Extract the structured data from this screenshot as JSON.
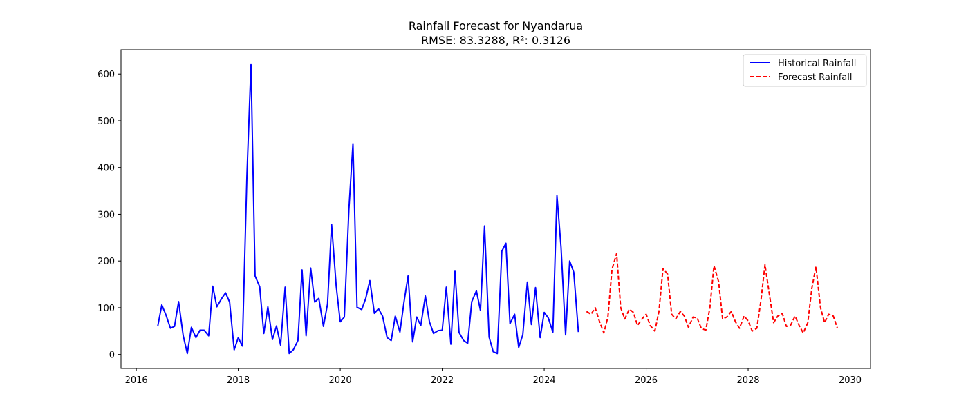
{
  "chart_data": {
    "type": "line",
    "title": "Rainfall Forecast for Nyandarua",
    "subtitle": "RMSE: 83.3288, R²: 0.3126",
    "xlabel": "",
    "ylabel": "",
    "xlim": [
      2015.7,
      2030.4
    ],
    "ylim": [
      -30,
      652
    ],
    "xticks": [
      2016,
      2018,
      2020,
      2022,
      2024,
      2026,
      2028,
      2030
    ],
    "yticks": [
      0,
      100,
      200,
      300,
      400,
      500,
      600
    ],
    "grid": false,
    "legend_position": "top-right",
    "series": [
      {
        "name": "Historical Rainfall",
        "color": "#0000ff",
        "style": "solid",
        "x": [
          2016.42,
          2016.5,
          2016.58,
          2016.67,
          2016.75,
          2016.83,
          2016.92,
          2017.0,
          2017.08,
          2017.17,
          2017.25,
          2017.33,
          2017.42,
          2017.5,
          2017.58,
          2017.67,
          2017.75,
          2017.83,
          2017.92,
          2018.0,
          2018.08,
          2018.17,
          2018.25,
          2018.33,
          2018.42,
          2018.5,
          2018.58,
          2018.67,
          2018.75,
          2018.83,
          2018.92,
          2019.0,
          2019.08,
          2019.17,
          2019.25,
          2019.33,
          2019.42,
          2019.5,
          2019.58,
          2019.67,
          2019.75,
          2019.83,
          2019.92,
          2020.0,
          2020.08,
          2020.17,
          2020.25,
          2020.33,
          2020.42,
          2020.5,
          2020.58,
          2020.67,
          2020.75,
          2020.83,
          2020.92,
          2021.0,
          2021.08,
          2021.17,
          2021.25,
          2021.33,
          2021.42,
          2021.5,
          2021.58,
          2021.67,
          2021.75,
          2021.83,
          2021.92,
          2022.0,
          2022.08,
          2022.17,
          2022.25,
          2022.33,
          2022.42,
          2022.5,
          2022.58,
          2022.67,
          2022.75,
          2022.83,
          2022.92,
          2023.0,
          2023.08,
          2023.17,
          2023.25,
          2023.33,
          2023.42,
          2023.5,
          2023.58,
          2023.67,
          2023.75,
          2023.83,
          2023.92,
          2024.0,
          2024.08,
          2024.17,
          2024.25,
          2024.33,
          2024.42,
          2024.5,
          2024.58,
          2024.67
        ],
        "values": [
          60,
          106,
          85,
          56,
          60,
          113,
          40,
          2,
          58,
          36,
          52,
          52,
          40,
          146,
          102,
          119,
          132,
          112,
          10,
          36,
          18,
          382,
          620,
          168,
          145,
          45,
          102,
          32,
          61,
          20,
          144,
          2,
          10,
          30,
          181,
          40,
          185,
          112,
          120,
          60,
          108,
          278,
          147,
          70,
          80,
          310,
          451,
          101,
          96,
          120,
          158,
          88,
          98,
          82,
          36,
          30,
          82,
          48,
          112,
          168,
          27,
          80,
          62,
          125,
          70,
          45,
          51,
          52,
          144,
          22,
          178,
          47,
          30,
          24,
          113,
          136,
          94,
          275,
          37,
          6,
          2,
          221,
          238,
          66,
          86,
          15,
          42,
          155,
          64,
          143,
          36,
          90,
          78,
          48,
          340,
          230,
          42,
          200,
          176,
          48
        ]
      },
      {
        "name": "Forecast Rainfall",
        "color": "#ff0000",
        "style": "dashed",
        "x": [
          2024.83,
          2024.92,
          2025.0,
          2025.08,
          2025.17,
          2025.25,
          2025.33,
          2025.42,
          2025.5,
          2025.58,
          2025.67,
          2025.75,
          2025.83,
          2025.92,
          2026.0,
          2026.08,
          2026.17,
          2026.25,
          2026.33,
          2026.42,
          2026.5,
          2026.58,
          2026.67,
          2026.75,
          2026.83,
          2026.92,
          2027.0,
          2027.08,
          2027.17,
          2027.25,
          2027.33,
          2027.42,
          2027.5,
          2027.58,
          2027.67,
          2027.75,
          2027.83,
          2027.92,
          2028.0,
          2028.08,
          2028.17,
          2028.25,
          2028.33,
          2028.42,
          2028.5,
          2028.58,
          2028.67,
          2028.75,
          2028.83,
          2028.92,
          2029.0,
          2029.08,
          2029.17,
          2029.25,
          2029.33,
          2029.42,
          2029.5,
          2029.58,
          2029.67,
          2029.75
        ],
        "values": [
          92,
          86,
          100,
          72,
          46,
          80,
          182,
          216,
          100,
          76,
          97,
          90,
          62,
          76,
          86,
          62,
          50,
          92,
          184,
          172,
          86,
          76,
          92,
          82,
          58,
          80,
          78,
          56,
          52,
          100,
          190,
          156,
          76,
          80,
          92,
          70,
          56,
          82,
          72,
          50,
          56,
          115,
          192,
          126,
          68,
          82,
          88,
          60,
          62,
          82,
          62,
          46,
          68,
          142,
          188,
          100,
          68,
          86,
          82,
          56
        ]
      }
    ]
  }
}
